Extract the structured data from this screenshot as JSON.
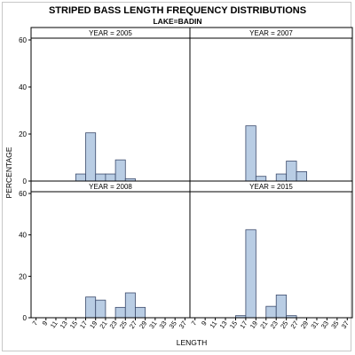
{
  "chart_data": {
    "type": "bar",
    "title": "STRIPED BASS LENGTH FREQUENCY DISTRIBUTIONS",
    "subtitle": "LAKE=BADIN",
    "xlabel": "LENGTH",
    "ylabel": "PERCENTAGE",
    "ylim": [
      0,
      60
    ],
    "y_ticks": [
      0,
      20,
      40,
      60
    ],
    "x_ticks": [
      7,
      9,
      11,
      13,
      15,
      17,
      19,
      21,
      23,
      25,
      27,
      29,
      31,
      33,
      35,
      37
    ],
    "xlim": [
      6,
      38
    ],
    "bar_width": 2,
    "grid": false,
    "colors": {
      "bar_fill": "#b9cde4",
      "bar_stroke": "#3b4a6b",
      "panel_border": "#000000"
    },
    "panels": [
      {
        "label": "YEAR = 2005",
        "bars": [
          {
            "x": 16,
            "value": 3
          },
          {
            "x": 18,
            "value": 20.5
          },
          {
            "x": 20,
            "value": 3
          },
          {
            "x": 22,
            "value": 3
          },
          {
            "x": 24,
            "value": 9
          },
          {
            "x": 26,
            "value": 1
          }
        ]
      },
      {
        "label": "YEAR = 2007",
        "bars": [
          {
            "x": 18,
            "value": 23.5
          },
          {
            "x": 20,
            "value": 2
          },
          {
            "x": 24,
            "value": 3
          },
          {
            "x": 26,
            "value": 8.5
          },
          {
            "x": 28,
            "value": 4
          }
        ]
      },
      {
        "label": "YEAR = 2008",
        "bars": [
          {
            "x": 18,
            "value": 10
          },
          {
            "x": 20,
            "value": 8.5
          },
          {
            "x": 24,
            "value": 5
          },
          {
            "x": 26,
            "value": 12
          },
          {
            "x": 28,
            "value": 5
          }
        ]
      },
      {
        "label": "YEAR = 2015",
        "bars": [
          {
            "x": 16,
            "value": 1
          },
          {
            "x": 18,
            "value": 42.5
          },
          {
            "x": 22,
            "value": 5.5
          },
          {
            "x": 24,
            "value": 11
          },
          {
            "x": 26,
            "value": 1
          }
        ]
      }
    ]
  }
}
